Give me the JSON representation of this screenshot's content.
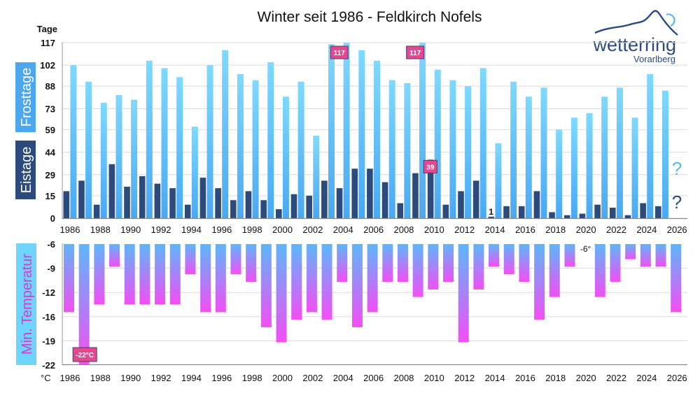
{
  "title": "Winter seit 1986 - Feldkirch Nofels",
  "logo": {
    "name": "wetterring",
    "sub": "Vorarlberg"
  },
  "colors": {
    "frost": "#5ec2f7",
    "frost_top": "#7dd8ff",
    "eis": "#2d4a7c",
    "temp_top": "#5cb7fb",
    "temp_bottom": "#f44ef5",
    "badge": "#e6488f",
    "temp_label_bg": "#6fd4fb",
    "temp_label_fg": "#d63ad9"
  },
  "chart_data": [
    {
      "type": "bar",
      "title": "Winter seit 1986 - Feldkirch Nofels",
      "ylabel": "Tage",
      "ylim": [
        0,
        117
      ],
      "yticks": [
        0,
        15,
        29,
        44,
        59,
        73,
        88,
        102,
        117
      ],
      "x_tick_labels": [
        "1986",
        "1988",
        "1990",
        "1992",
        "1994",
        "1996",
        "1998",
        "2000",
        "2002",
        "2004",
        "2006",
        "2008",
        "2010",
        "2012",
        "2014",
        "2016",
        "2018",
        "2020",
        "2022",
        "2024",
        "2026"
      ],
      "categories": [
        1986,
        1987,
        1988,
        1989,
        1990,
        1991,
        1992,
        1993,
        1994,
        1995,
        1996,
        1997,
        1998,
        1999,
        2000,
        2001,
        2002,
        2003,
        2004,
        2005,
        2006,
        2007,
        2008,
        2009,
        2010,
        2011,
        2012,
        2013,
        2014,
        2015,
        2016,
        2017,
        2018,
        2019,
        2020,
        2021,
        2022,
        2023,
        2024,
        2025
      ],
      "series": [
        {
          "name": "Eistage",
          "values": [
            18,
            25,
            9,
            36,
            21,
            28,
            23,
            20,
            9,
            27,
            20,
            12,
            18,
            12,
            6,
            16,
            15,
            25,
            20,
            33,
            33,
            24,
            10,
            30,
            39,
            9,
            18,
            25,
            1,
            8,
            8,
            18,
            4,
            2,
            3,
            9,
            7,
            2,
            10,
            8
          ]
        },
        {
          "name": "Frosttage",
          "values": [
            102,
            91,
            77,
            82,
            79,
            105,
            100,
            94,
            61,
            102,
            112,
            96,
            92,
            104,
            81,
            91,
            55,
            116,
            117,
            112,
            105,
            92,
            90,
            117,
            99,
            92,
            88,
            100,
            50,
            91,
            81,
            87,
            59,
            67,
            70,
            81,
            87,
            67,
            96,
            85
          ]
        }
      ],
      "legend": [
        "Frosttage",
        "Eistage"
      ],
      "legend_placement": "left",
      "annotations": [
        {
          "year": 2004,
          "series": "Frosttage",
          "text": "117"
        },
        {
          "year": 2009,
          "series": "Frosttage",
          "text": "117"
        },
        {
          "year": 2010,
          "series": "Eistage",
          "text": "39"
        },
        {
          "year": 2014,
          "series": "Eistage",
          "text": "1"
        }
      ],
      "pending": {
        "year": 2026,
        "frost_text": "?",
        "eis_text": "?"
      },
      "grid": true
    },
    {
      "type": "bar",
      "ylabel": "Min. Temperatur",
      "unit": "°C",
      "ylim": [
        -22,
        -6
      ],
      "yticks": [
        "-6",
        "-9",
        "-12",
        "-16",
        "-19",
        "-22"
      ],
      "x_tick_labels": [
        "1986",
        "1988",
        "1990",
        "1992",
        "1994",
        "1996",
        "1998",
        "2000",
        "2002",
        "2004",
        "2006",
        "2008",
        "2010",
        "2012",
        "2014",
        "2016",
        "2018",
        "2020",
        "2022",
        "2024",
        "2026"
      ],
      "categories": [
        1986,
        1987,
        1988,
        1989,
        1990,
        1991,
        1992,
        1993,
        1994,
        1995,
        1996,
        1997,
        1998,
        1999,
        2000,
        2001,
        2002,
        2003,
        2004,
        2005,
        2006,
        2007,
        2008,
        2009,
        2010,
        2011,
        2012,
        2013,
        2014,
        2015,
        2016,
        2017,
        2018,
        2019,
        2020,
        2021,
        2022,
        2023,
        2024,
        2025,
        2026
      ],
      "values": [
        -15,
        -22,
        -14,
        -9,
        -14,
        -14,
        -14,
        -14,
        -10,
        -15,
        -15,
        -10,
        -11,
        -17,
        -19,
        -16,
        -15,
        -16,
        -11,
        -17,
        -15,
        -11,
        -11,
        -13,
        -12,
        -11,
        -19,
        -12,
        -9,
        -10,
        -11,
        -16,
        -13,
        -9,
        -6,
        -13,
        -11,
        -8,
        -9,
        -9,
        -15
      ],
      "annotations": [
        {
          "year": 1987,
          "text": "-22°C"
        },
        {
          "year": 2020,
          "text": "-6°"
        }
      ],
      "grid": true
    }
  ]
}
